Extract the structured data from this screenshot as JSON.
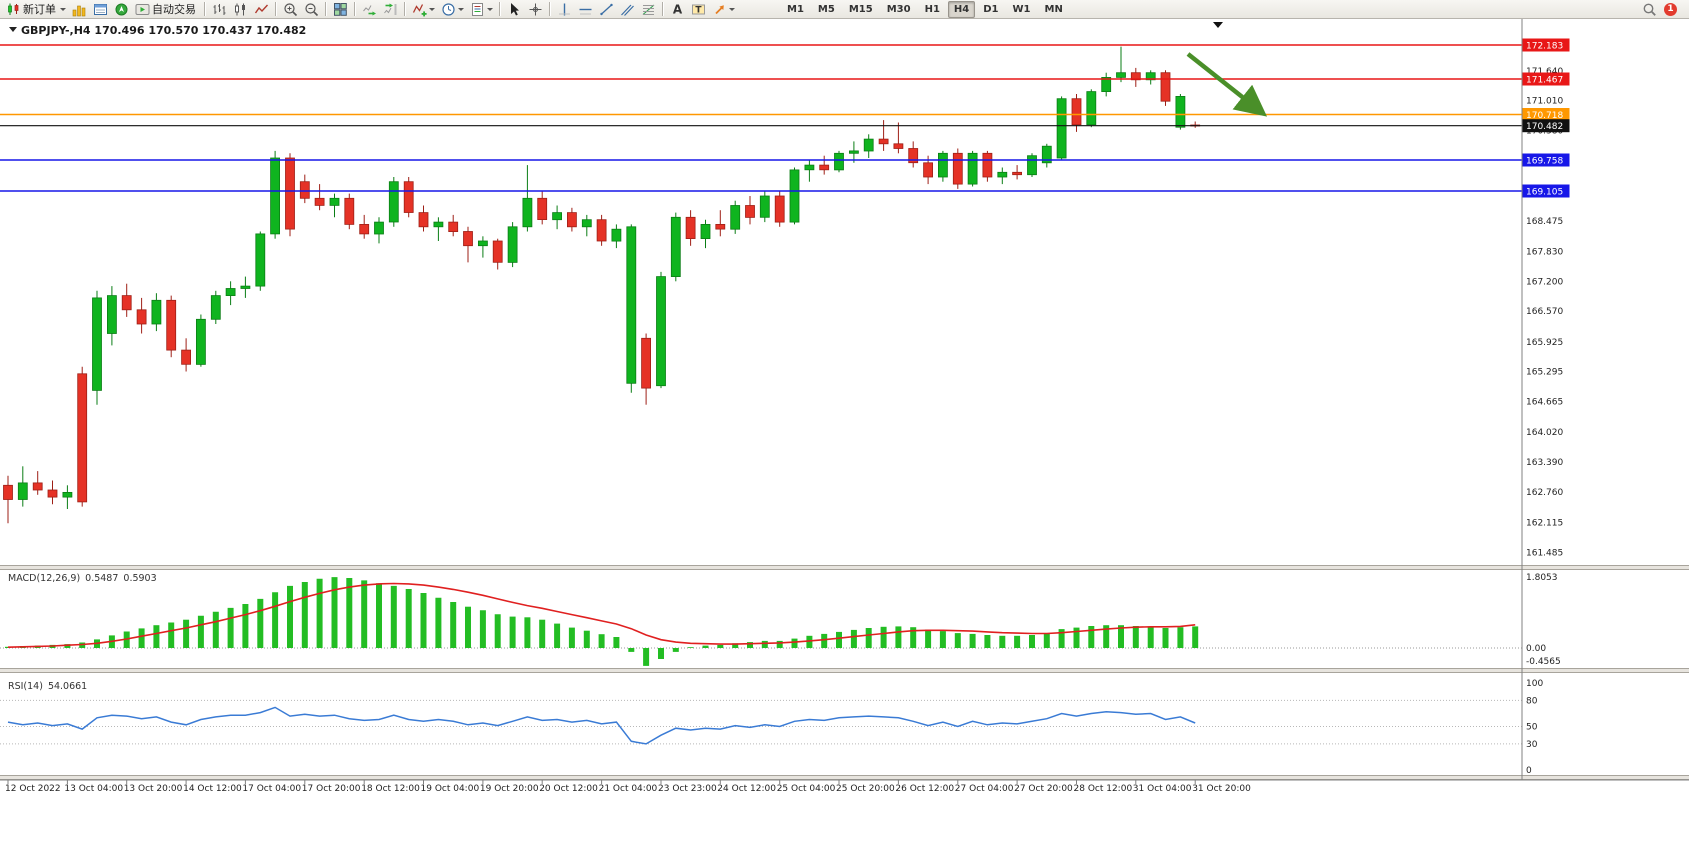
{
  "toolbar": {
    "groups": [
      [
        {
          "name": "new-order",
          "icon": "new-order-icon",
          "label": "新订单",
          "dropdown": true
        },
        {
          "name": "market-watch",
          "icon": "market-watch-icon"
        },
        {
          "name": "data-window",
          "icon": "data-window-icon"
        },
        {
          "name": "navigator",
          "icon": "navigator-icon"
        },
        {
          "name": "auto-trading",
          "icon": "auto-trading-icon",
          "label": "自动交易"
        }
      ],
      [
        {
          "name": "bar-chart",
          "icon": "bar-chart-icon"
        },
        {
          "name": "candle-chart",
          "icon": "candle-chart-icon"
        },
        {
          "name": "line-chart",
          "icon": "line-chart-icon"
        }
      ],
      [
        {
          "name": "zoom-in",
          "icon": "zoom-in-icon"
        },
        {
          "name": "zoom-out",
          "icon": "zoom-out-icon"
        }
      ],
      [
        {
          "name": "tile-windows",
          "icon": "tile-windows-icon"
        }
      ],
      [
        {
          "name": "auto-scroll",
          "icon": "auto-scroll-icon"
        },
        {
          "name": "chart-shift",
          "icon": "chart-shift-icon"
        }
      ],
      [
        {
          "name": "indicators",
          "icon": "indicators-icon",
          "dropdown": true
        },
        {
          "name": "periods",
          "icon": "periods-icon",
          "dropdown": true
        },
        {
          "name": "templates",
          "icon": "templates-icon",
          "dropdown": true
        }
      ],
      [
        {
          "name": "cursor",
          "icon": "cursor-icon"
        },
        {
          "name": "crosshair",
          "icon": "crosshair-icon"
        }
      ],
      [
        {
          "name": "vline",
          "icon": "vline-icon"
        },
        {
          "name": "hline",
          "icon": "hline-icon"
        },
        {
          "name": "trendline",
          "icon": "trendline-icon"
        },
        {
          "name": "channel",
          "icon": "channel-icon"
        },
        {
          "name": "fibonacci",
          "icon": "fibonacci-icon"
        }
      ],
      [
        {
          "name": "text",
          "icon": "text-icon"
        },
        {
          "name": "text-label",
          "icon": "text-label-icon"
        },
        {
          "name": "arrows",
          "icon": "arrows-icon",
          "dropdown": true
        }
      ]
    ],
    "timeframes": [
      "M1",
      "M5",
      "M15",
      "M30",
      "H1",
      "H4",
      "D1",
      "W1",
      "MN"
    ],
    "active_timeframe": "H4",
    "notification_count": "1"
  },
  "chart": {
    "symbol_title": "GBPJPY-,H4  170.496 170.570 170.437 170.482",
    "price_lines": [
      {
        "price": "172.183",
        "value": 172.183,
        "color": "#e81717",
        "type": "resistance"
      },
      {
        "price": "171.467",
        "value": 171.467,
        "color": "#e81717",
        "type": "resistance"
      },
      {
        "price": "170.718",
        "value": 170.718,
        "color": "#ff9800",
        "type": "pivot"
      },
      {
        "price": "170.482",
        "value": 170.482,
        "color": "#111111",
        "type": "current-price"
      },
      {
        "price": "169.758",
        "value": 169.758,
        "color": "#1717e8",
        "type": "support"
      },
      {
        "price": "169.105",
        "value": 169.105,
        "color": "#1717e8",
        "type": "support"
      }
    ],
    "y_axis_labels": [
      "171.640",
      "171.010",
      "170.380",
      "168.475",
      "167.830",
      "167.200",
      "166.570",
      "165.925",
      "165.295",
      "164.665",
      "164.020",
      "163.390",
      "162.760",
      "162.115",
      "161.485"
    ],
    "colors": {
      "up": "#0fb41f",
      "up_border": "#0a7d15",
      "down": "#e53226",
      "down_border": "#9e1f16",
      "macd_hist": "#23bd23",
      "macd_signal": "#e02020",
      "rsi": "#3a7bd5",
      "arrow": "#4a8f29"
    },
    "annotation_arrow": {
      "color": "#4a8f29"
    }
  },
  "macd": {
    "label": "MACD(12,26,9)",
    "value_main": "0.5487",
    "value_signal": "0.5903",
    "axis_labels": [
      "1.8053",
      "0.00",
      "-0.4565"
    ]
  },
  "rsi": {
    "label": "RSI(14)",
    "value": "54.0661",
    "axis_labels": [
      "100",
      "80",
      "50",
      "30",
      "0"
    ],
    "levels": [
      80,
      50,
      30
    ]
  },
  "chart_data": {
    "type": "candlestick",
    "symbol": "GBPJPY",
    "timeframe": "H4",
    "ohlc_current": {
      "open": 170.496,
      "high": 170.57,
      "low": 170.437,
      "close": 170.482
    },
    "ylim": [
      161.2,
      172.6
    ],
    "time_labels": [
      "12 Oct 2022",
      "13 Oct 04:00",
      "13 Oct 20:00",
      "14 Oct 12:00",
      "17 Oct 04:00",
      "17 Oct 20:00",
      "18 Oct 12:00",
      "19 Oct 04:00",
      "19 Oct 20:00",
      "20 Oct 12:00",
      "21 Oct 04:00",
      "23 Oct 23:00",
      "24 Oct 12:00",
      "25 Oct 04:00",
      "25 Oct 20:00",
      "26 Oct 12:00",
      "27 Oct 04:00",
      "27 Oct 20:00",
      "28 Oct 12:00",
      "31 Oct 04:00",
      "31 Oct 20:00"
    ],
    "candles": [
      [
        162.9,
        163.1,
        162.1,
        162.6
      ],
      [
        162.6,
        163.3,
        162.45,
        162.95
      ],
      [
        162.95,
        163.2,
        162.7,
        162.8
      ],
      [
        162.8,
        163.0,
        162.5,
        162.65
      ],
      [
        162.65,
        162.9,
        162.4,
        162.75
      ],
      [
        165.25,
        165.4,
        162.45,
        162.55
      ],
      [
        164.9,
        167.0,
        164.6,
        166.85
      ],
      [
        166.1,
        167.1,
        165.85,
        166.9
      ],
      [
        166.9,
        167.15,
        166.45,
        166.6
      ],
      [
        166.6,
        166.85,
        166.1,
        166.3
      ],
      [
        166.3,
        166.95,
        166.15,
        166.8
      ],
      [
        166.8,
        166.9,
        165.6,
        165.75
      ],
      [
        165.75,
        166.0,
        165.3,
        165.45
      ],
      [
        165.45,
        166.5,
        165.4,
        166.4
      ],
      [
        166.4,
        167.0,
        166.3,
        166.9
      ],
      [
        166.9,
        167.2,
        166.7,
        167.05
      ],
      [
        167.05,
        167.3,
        166.85,
        167.1
      ],
      [
        167.1,
        168.25,
        167.0,
        168.2
      ],
      [
        168.2,
        169.95,
        168.1,
        169.8
      ],
      [
        169.8,
        169.9,
        168.15,
        168.3
      ],
      [
        169.3,
        169.45,
        168.85,
        168.95
      ],
      [
        168.95,
        169.25,
        168.7,
        168.8
      ],
      [
        168.8,
        169.05,
        168.55,
        168.95
      ],
      [
        168.95,
        169.05,
        168.3,
        168.4
      ],
      [
        168.4,
        168.6,
        168.1,
        168.2
      ],
      [
        168.2,
        168.55,
        168.0,
        168.45
      ],
      [
        168.45,
        169.4,
        168.35,
        169.3
      ],
      [
        169.3,
        169.4,
        168.55,
        168.65
      ],
      [
        168.65,
        168.8,
        168.25,
        168.35
      ],
      [
        168.35,
        168.55,
        168.05,
        168.45
      ],
      [
        168.45,
        168.6,
        168.15,
        168.25
      ],
      [
        168.25,
        168.35,
        167.6,
        167.95
      ],
      [
        167.95,
        168.15,
        167.7,
        168.05
      ],
      [
        168.05,
        168.1,
        167.45,
        167.6
      ],
      [
        167.6,
        168.45,
        167.5,
        168.35
      ],
      [
        168.35,
        169.65,
        168.25,
        168.95
      ],
      [
        168.95,
        169.1,
        168.4,
        168.5
      ],
      [
        168.5,
        168.8,
        168.3,
        168.65
      ],
      [
        168.65,
        168.75,
        168.25,
        168.35
      ],
      [
        168.35,
        168.6,
        168.15,
        168.5
      ],
      [
        168.5,
        168.6,
        167.95,
        168.05
      ],
      [
        168.05,
        168.4,
        167.9,
        168.3
      ],
      [
        165.05,
        168.4,
        164.85,
        168.35
      ],
      [
        166.0,
        166.1,
        164.6,
        164.95
      ],
      [
        165.0,
        167.4,
        164.95,
        167.3
      ],
      [
        167.3,
        168.65,
        167.2,
        168.55
      ],
      [
        168.55,
        168.7,
        167.95,
        168.1
      ],
      [
        168.1,
        168.5,
        167.9,
        168.4
      ],
      [
        168.4,
        168.7,
        168.15,
        168.3
      ],
      [
        168.3,
        168.9,
        168.2,
        168.8
      ],
      [
        168.8,
        169.0,
        168.4,
        168.55
      ],
      [
        168.55,
        169.1,
        168.45,
        169.0
      ],
      [
        169.0,
        169.1,
        168.35,
        168.45
      ],
      [
        168.45,
        169.6,
        168.4,
        169.55
      ],
      [
        169.55,
        169.75,
        169.3,
        169.65
      ],
      [
        169.65,
        169.85,
        169.45,
        169.55
      ],
      [
        169.55,
        169.95,
        169.5,
        169.9
      ],
      [
        169.9,
        170.15,
        169.7,
        169.95
      ],
      [
        169.95,
        170.3,
        169.8,
        170.2
      ],
      [
        170.2,
        170.6,
        169.95,
        170.1
      ],
      [
        170.1,
        170.55,
        169.9,
        170.0
      ],
      [
        170.0,
        170.15,
        169.6,
        169.7
      ],
      [
        169.7,
        169.85,
        169.25,
        169.4
      ],
      [
        169.4,
        169.95,
        169.3,
        169.9
      ],
      [
        169.9,
        170.0,
        169.15,
        169.25
      ],
      [
        169.25,
        169.95,
        169.2,
        169.9
      ],
      [
        169.9,
        169.95,
        169.3,
        169.4
      ],
      [
        169.4,
        169.6,
        169.25,
        169.5
      ],
      [
        169.5,
        169.65,
        169.35,
        169.45
      ],
      [
        169.45,
        169.9,
        169.4,
        169.85
      ],
      [
        169.7,
        170.1,
        169.6,
        170.05
      ],
      [
        169.8,
        171.1,
        169.75,
        171.05
      ],
      [
        171.05,
        171.15,
        170.35,
        170.5
      ],
      [
        170.5,
        171.25,
        170.45,
        171.2
      ],
      [
        171.2,
        171.6,
        171.1,
        171.5
      ],
      [
        171.5,
        172.15,
        171.4,
        171.6
      ],
      [
        171.6,
        171.7,
        171.3,
        171.45
      ],
      [
        171.45,
        171.65,
        171.35,
        171.6
      ],
      [
        171.6,
        171.65,
        170.9,
        171.0
      ],
      [
        170.45,
        171.15,
        170.4,
        171.1
      ],
      [
        170.496,
        170.57,
        170.437,
        170.482
      ]
    ],
    "indicators": [
      {
        "type": "macd",
        "params": "12,26,9",
        "current_main": 0.5487,
        "current_signal": 0.5903,
        "ylim": [
          -0.4565,
          1.8053
        ],
        "histogram": [
          0.03,
          0.05,
          0.06,
          0.08,
          0.1,
          0.14,
          0.22,
          0.32,
          0.42,
          0.5,
          0.58,
          0.65,
          0.72,
          0.82,
          0.92,
          1.02,
          1.12,
          1.25,
          1.42,
          1.58,
          1.68,
          1.76,
          1.8053,
          1.78,
          1.72,
          1.65,
          1.58,
          1.5,
          1.4,
          1.28,
          1.17,
          1.05,
          0.96,
          0.86,
          0.8,
          0.78,
          0.72,
          0.62,
          0.52,
          0.44,
          0.35,
          0.28,
          -0.1,
          -0.4565,
          -0.28,
          -0.1,
          0.02,
          0.06,
          0.08,
          0.12,
          0.15,
          0.18,
          0.18,
          0.24,
          0.31,
          0.36,
          0.41,
          0.46,
          0.51,
          0.54,
          0.55,
          0.53,
          0.47,
          0.43,
          0.38,
          0.36,
          0.33,
          0.31,
          0.31,
          0.33,
          0.38,
          0.48,
          0.52,
          0.56,
          0.58,
          0.58,
          0.56,
          0.54,
          0.51,
          0.53,
          0.5487
        ],
        "signal_line": [
          0.02,
          0.03,
          0.04,
          0.05,
          0.07,
          0.09,
          0.12,
          0.17,
          0.23,
          0.3,
          0.37,
          0.44,
          0.51,
          0.59,
          0.67,
          0.76,
          0.85,
          0.95,
          1.06,
          1.18,
          1.29,
          1.39,
          1.48,
          1.55,
          1.6,
          1.63,
          1.64,
          1.63,
          1.6,
          1.55,
          1.49,
          1.42,
          1.34,
          1.25,
          1.16,
          1.08,
          1.01,
          0.93,
          0.85,
          0.77,
          0.69,
          0.61,
          0.49,
          0.33,
          0.21,
          0.15,
          0.12,
          0.11,
          0.1,
          0.1,
          0.11,
          0.12,
          0.13,
          0.15,
          0.18,
          0.21,
          0.25,
          0.29,
          0.33,
          0.37,
          0.41,
          0.44,
          0.45,
          0.45,
          0.44,
          0.43,
          0.41,
          0.39,
          0.38,
          0.37,
          0.37,
          0.39,
          0.42,
          0.45,
          0.48,
          0.51,
          0.53,
          0.54,
          0.54,
          0.55,
          0.5903
        ]
      },
      {
        "type": "rsi",
        "params": "14",
        "current": 54.0661,
        "ylim": [
          0,
          100
        ],
        "levels": [
          80,
          50,
          30
        ],
        "values": [
          55,
          52,
          54,
          51,
          53,
          47,
          60,
          63,
          62,
          59,
          61,
          55,
          52,
          58,
          61,
          63,
          63,
          66,
          72,
          62,
          64,
          62,
          63,
          59,
          57,
          58,
          63,
          58,
          56,
          58,
          56,
          52,
          54,
          51,
          56,
          61,
          57,
          58,
          55,
          57,
          53,
          55,
          33,
          30,
          40,
          48,
          46,
          48,
          47,
          51,
          49,
          52,
          50,
          56,
          58,
          57,
          60,
          61,
          62,
          61,
          60,
          56,
          51,
          55,
          50,
          56,
          52,
          54,
          53,
          56,
          59,
          65,
          62,
          65,
          67,
          66,
          64,
          65,
          58,
          61,
          54.07
        ]
      }
    ]
  }
}
